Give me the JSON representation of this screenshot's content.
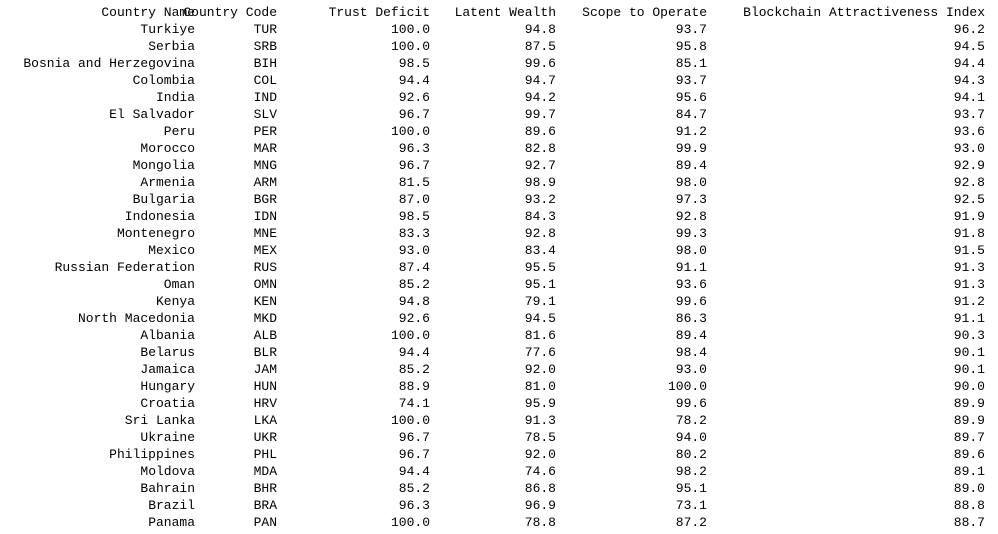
{
  "table": {
    "columns": [
      "Country Name",
      "Country Code",
      "Trust Deficit",
      "Latent Wealth",
      "Scope to Operate",
      "Blockchain Attractiveness Index"
    ],
    "rows": [
      [
        "Turkiye",
        "TUR",
        "100.0",
        "94.8",
        "93.7",
        "96.2"
      ],
      [
        "Serbia",
        "SRB",
        "100.0",
        "87.5",
        "95.8",
        "94.5"
      ],
      [
        "Bosnia and Herzegovina",
        "BIH",
        "98.5",
        "99.6",
        "85.1",
        "94.4"
      ],
      [
        "Colombia",
        "COL",
        "94.4",
        "94.7",
        "93.7",
        "94.3"
      ],
      [
        "India",
        "IND",
        "92.6",
        "94.2",
        "95.6",
        "94.1"
      ],
      [
        "El Salvador",
        "SLV",
        "96.7",
        "99.7",
        "84.7",
        "93.7"
      ],
      [
        "Peru",
        "PER",
        "100.0",
        "89.6",
        "91.2",
        "93.6"
      ],
      [
        "Morocco",
        "MAR",
        "96.3",
        "82.8",
        "99.9",
        "93.0"
      ],
      [
        "Mongolia",
        "MNG",
        "96.7",
        "92.7",
        "89.4",
        "92.9"
      ],
      [
        "Armenia",
        "ARM",
        "81.5",
        "98.9",
        "98.0",
        "92.8"
      ],
      [
        "Bulgaria",
        "BGR",
        "87.0",
        "93.2",
        "97.3",
        "92.5"
      ],
      [
        "Indonesia",
        "IDN",
        "98.5",
        "84.3",
        "92.8",
        "91.9"
      ],
      [
        "Montenegro",
        "MNE",
        "83.3",
        "92.8",
        "99.3",
        "91.8"
      ],
      [
        "Mexico",
        "MEX",
        "93.0",
        "83.4",
        "98.0",
        "91.5"
      ],
      [
        "Russian Federation",
        "RUS",
        "87.4",
        "95.5",
        "91.1",
        "91.3"
      ],
      [
        "Oman",
        "OMN",
        "85.2",
        "95.1",
        "93.6",
        "91.3"
      ],
      [
        "Kenya",
        "KEN",
        "94.8",
        "79.1",
        "99.6",
        "91.2"
      ],
      [
        "North Macedonia",
        "MKD",
        "92.6",
        "94.5",
        "86.3",
        "91.1"
      ],
      [
        "Albania",
        "ALB",
        "100.0",
        "81.6",
        "89.4",
        "90.3"
      ],
      [
        "Belarus",
        "BLR",
        "94.4",
        "77.6",
        "98.4",
        "90.1"
      ],
      [
        "Jamaica",
        "JAM",
        "85.2",
        "92.0",
        "93.0",
        "90.1"
      ],
      [
        "Hungary",
        "HUN",
        "88.9",
        "81.0",
        "100.0",
        "90.0"
      ],
      [
        "Croatia",
        "HRV",
        "74.1",
        "95.9",
        "99.6",
        "89.9"
      ],
      [
        "Sri Lanka",
        "LKA",
        "100.0",
        "91.3",
        "78.2",
        "89.9"
      ],
      [
        "Ukraine",
        "UKR",
        "96.7",
        "78.5",
        "94.0",
        "89.7"
      ],
      [
        "Philippines",
        "PHL",
        "96.7",
        "92.0",
        "80.2",
        "89.6"
      ],
      [
        "Moldova",
        "MDA",
        "94.4",
        "74.6",
        "98.2",
        "89.1"
      ],
      [
        "Bahrain",
        "BHR",
        "85.2",
        "86.8",
        "95.1",
        "89.0"
      ],
      [
        "Brazil",
        "BRA",
        "96.3",
        "96.9",
        "73.1",
        "88.8"
      ],
      [
        "Panama",
        "PAN",
        "100.0",
        "78.8",
        "87.2",
        "88.7"
      ]
    ]
  }
}
